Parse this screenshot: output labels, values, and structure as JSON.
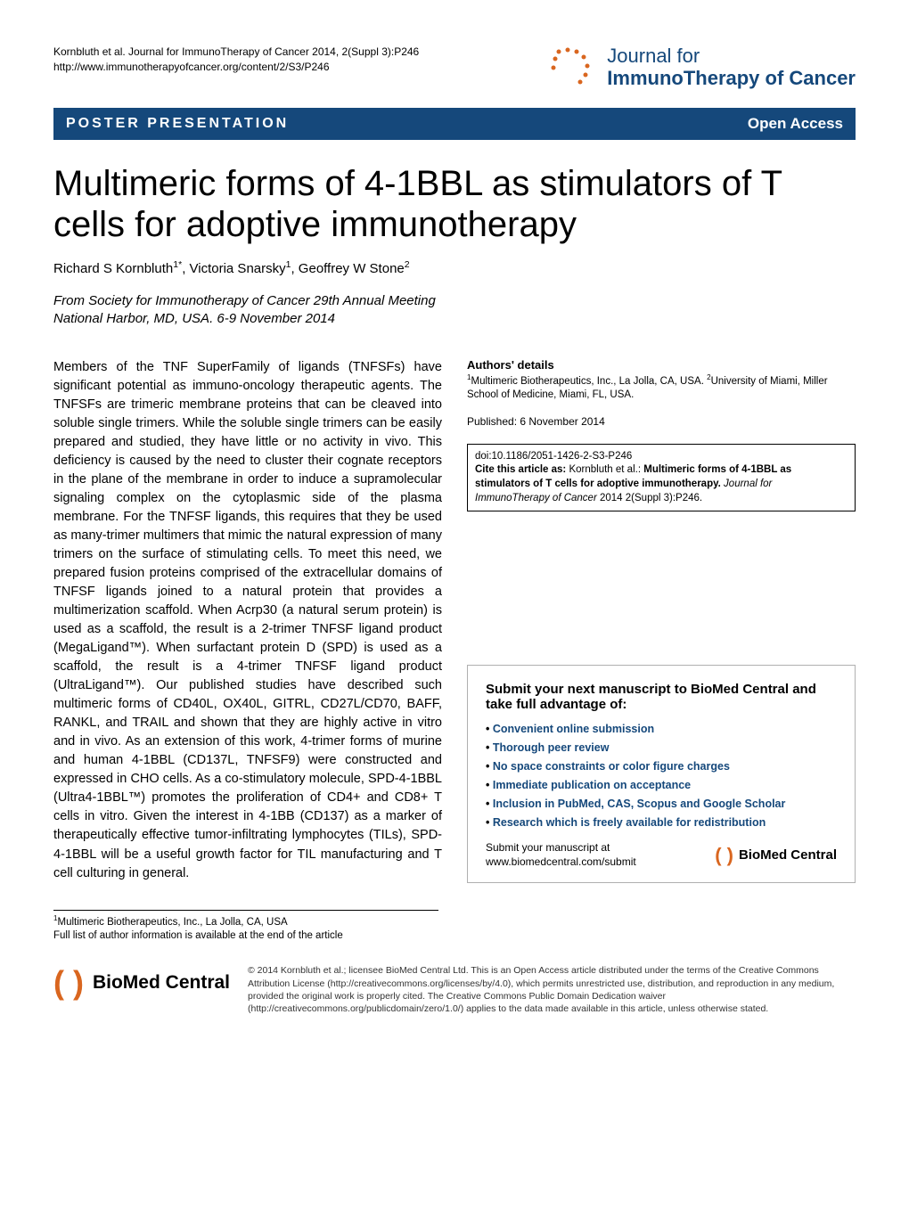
{
  "meta": {
    "citation": "Kornbluth et al. Journal for ImmunoTherapy of Cancer 2014, 2(Suppl 3):P246",
    "url": "http://www.immunotherapyofcancer.org/content/2/S3/P246"
  },
  "journal_logo": {
    "line1": "Journal for",
    "line2": "ImmunoTherapy of Cancer",
    "color": "#15487b",
    "dot_color": "#d9661f"
  },
  "banner": {
    "left": "POSTER PRESENTATION",
    "right": "Open Access",
    "bg_color": "#15487b"
  },
  "title": "Multimeric forms of 4-1BBL as stimulators of T cells for adoptive immunotherapy",
  "authors_html": "Richard S Kornbluth<sup>1*</sup>, Victoria Snarsky<sup>1</sup>, Geoffrey W Stone<sup>2</sup>",
  "from": {
    "prefix": "From",
    "event": "Society for Immunotherapy of Cancer 29th Annual Meeting",
    "location": "National Harbor, MD, USA. 6-9 November 2014"
  },
  "body": "Members of the TNF SuperFamily of ligands (TNFSFs) have significant potential as immuno-oncology therapeutic agents. The TNFSFs are trimeric membrane proteins that can be cleaved into soluble single trimers. While the soluble single trimers can be easily prepared and studied, they have little or no activity in vivo. This deficiency is caused by the need to cluster their cognate receptors in the plane of the membrane in order to induce a supramolecular signaling complex on the cytoplasmic side of the plasma membrane. For the TNFSF ligands, this requires that they be used as many-trimer multimers that mimic the natural expression of many trimers on the surface of stimulating cells. To meet this need, we prepared fusion proteins comprised of the extracellular domains of TNFSF ligands joined to a natural protein that provides a multimerization scaffold. When Acrp30 (a natural serum protein) is used as a scaffold, the result is a 2-trimer TNFSF ligand product (MegaLigand™). When surfactant protein D (SPD) is used as a scaffold, the result is a 4-trimer TNFSF ligand product (UltraLigand™). Our published studies have described such multimeric forms of CD40L, OX40L, GITRL, CD27L/CD70, BAFF, RANKL, and TRAIL and shown that they are highly active in vitro and in vivo. As an extension of this work, 4-trimer forms of murine and human 4-1BBL (CD137L, TNFSF9) were constructed and expressed in CHO cells. As a co-stimulatory molecule, SPD-4-1BBL (Ultra4-1BBL™) promotes the proliferation of CD4+ and CD8+ T cells in vitro. Given the interest in 4-1BB (CD137) as a marker of therapeutically effective tumor-infiltrating lymphocytes (TILs), SPD-4-1BBL will be a useful growth factor for TIL manufacturing and T cell culturing in general.",
  "authors_details": {
    "heading": "Authors' details",
    "text_html": "<sup>1</sup>Multimeric Biotherapeutics, Inc., La Jolla, CA, USA. <sup>2</sup>University of Miami, Miller School of Medicine, Miami, FL, USA."
  },
  "published": "Published: 6 November 2014",
  "doi_box": {
    "doi": "doi:10.1186/2051-1426-2-S3-P246",
    "cite_label": "Cite this article as:",
    "cite_authors": "Kornbluth et al.:",
    "cite_title": "Multimeric forms of 4-1BBL as stimulators of T cells for adoptive immunotherapy.",
    "cite_journal": "Journal for ImmunoTherapy of Cancer",
    "cite_ref": "2014 2(Suppl 3):P246."
  },
  "submit_box": {
    "heading": "Submit your next manuscript to BioMed Central and take full advantage of:",
    "items": [
      "Convenient online submission",
      "Thorough peer review",
      "No space constraints or color figure charges",
      "Immediate publication on acceptance",
      "Inclusion in PubMed, CAS, Scopus and Google Scholar",
      "Research which is freely available for redistribution"
    ],
    "cta_line1": "Submit your manuscript at",
    "cta_line2": "www.biomedcentral.com/submit",
    "logo_text": "BioMed Central"
  },
  "footer_affil": {
    "line1_html": "<sup>1</sup>Multimeric Biotherapeutics, Inc., La Jolla, CA, USA",
    "line2": "Full list of author information is available at the end of the article"
  },
  "license": {
    "logo_text": "BioMed Central",
    "text": "© 2014 Kornbluth et al.; licensee BioMed Central Ltd. This is an Open Access article distributed under the terms of the Creative Commons Attribution License (http://creativecommons.org/licenses/by/4.0), which permits unrestricted use, distribution, and reproduction in any medium, provided the original work is properly cited. The Creative Commons Public Domain Dedication waiver (http://creativecommons.org/publicdomain/zero/1.0/) applies to the data made available in this article, unless otherwise stated."
  },
  "colors": {
    "brand_blue": "#15487b",
    "brand_orange": "#d9661f",
    "link_blue": "#15487b"
  }
}
